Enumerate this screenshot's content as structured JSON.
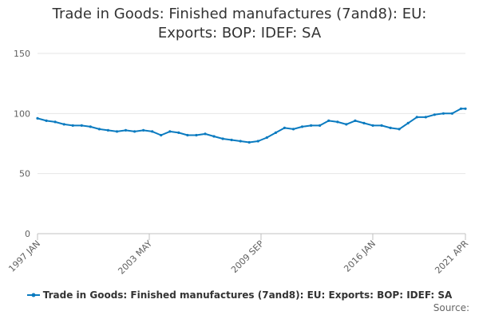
{
  "chart_data": {
    "type": "line",
    "title": "Trade in Goods: Finished manufactures (7and8): EU: Exports: BOP: IDEF: SA",
    "title_lines": [
      "Trade in Goods: Finished manufactures (7and8): EU:",
      "Exports: BOP: IDEF: SA"
    ],
    "xlabel": "",
    "ylabel": "",
    "ylim": [
      0,
      150
    ],
    "yticks": [
      0,
      50,
      100,
      150
    ],
    "xlim": [
      "1997-01",
      "2021-04"
    ],
    "xticks": [
      {
        "label": "1997 JAN",
        "date": "1997-01"
      },
      {
        "label": "2003 MAY",
        "date": "2003-05"
      },
      {
        "label": "2009 SEP",
        "date": "2009-09"
      },
      {
        "label": "2016 JAN",
        "date": "2016-01"
      },
      {
        "label": "2021 APR",
        "date": "2021-04"
      }
    ],
    "grid": true,
    "legend_placement": "bottom",
    "color": "#0b7bc0",
    "series": [
      {
        "name": "Trade in Goods: Finished manufactures (7and8): EU: Exports: BOP: IDEF: SA",
        "points": [
          [
            "1997-01",
            96
          ],
          [
            "1997-07",
            94
          ],
          [
            "1998-01",
            93
          ],
          [
            "1998-07",
            91
          ],
          [
            "1999-01",
            90
          ],
          [
            "1999-07",
            90
          ],
          [
            "2000-01",
            89
          ],
          [
            "2000-07",
            87
          ],
          [
            "2001-01",
            86
          ],
          [
            "2001-07",
            85
          ],
          [
            "2002-01",
            86
          ],
          [
            "2002-07",
            85
          ],
          [
            "2003-01",
            86
          ],
          [
            "2003-07",
            85
          ],
          [
            "2004-01",
            82
          ],
          [
            "2004-07",
            85
          ],
          [
            "2005-01",
            84
          ],
          [
            "2005-07",
            82
          ],
          [
            "2006-01",
            82
          ],
          [
            "2006-07",
            83
          ],
          [
            "2007-01",
            81
          ],
          [
            "2007-07",
            79
          ],
          [
            "2008-01",
            78
          ],
          [
            "2008-07",
            77
          ],
          [
            "2009-01",
            76
          ],
          [
            "2009-07",
            77
          ],
          [
            "2010-01",
            80
          ],
          [
            "2010-07",
            84
          ],
          [
            "2011-01",
            88
          ],
          [
            "2011-07",
            87
          ],
          [
            "2012-01",
            89
          ],
          [
            "2012-07",
            90
          ],
          [
            "2013-01",
            90
          ],
          [
            "2013-07",
            94
          ],
          [
            "2014-01",
            93
          ],
          [
            "2014-07",
            91
          ],
          [
            "2015-01",
            94
          ],
          [
            "2015-07",
            92
          ],
          [
            "2016-01",
            90
          ],
          [
            "2016-07",
            90
          ],
          [
            "2017-01",
            88
          ],
          [
            "2017-07",
            87
          ],
          [
            "2018-01",
            92
          ],
          [
            "2018-07",
            97
          ],
          [
            "2019-01",
            97
          ],
          [
            "2019-07",
            99
          ],
          [
            "2020-01",
            100
          ],
          [
            "2020-07",
            100
          ],
          [
            "2021-01",
            104
          ],
          [
            "2021-04",
            104
          ]
        ]
      }
    ]
  },
  "source_label": "Source:"
}
